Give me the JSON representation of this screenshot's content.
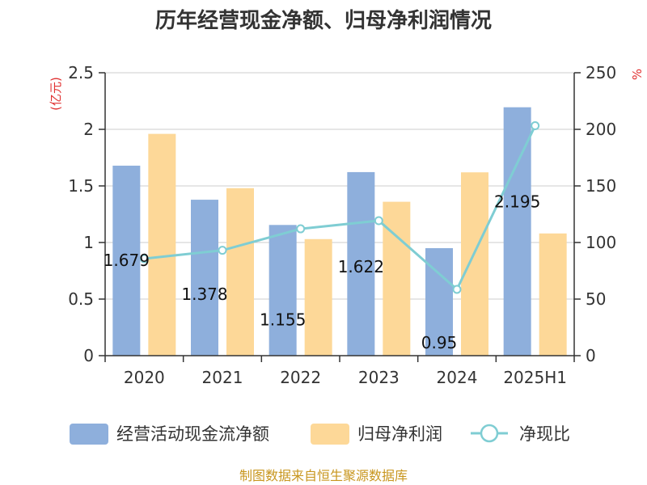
{
  "chart_data": {
    "type": "bar",
    "title": "历年经营现金净额、归母净利润情况",
    "categories": [
      "2020",
      "2021",
      "2022",
      "2023",
      "2024",
      "2025H1"
    ],
    "left_axis": {
      "unit": "(亿元)",
      "ylim": [
        0,
        2.5
      ],
      "ticks": [
        "0",
        "0.5",
        "1",
        "1.5",
        "2",
        "2.5"
      ],
      "tick_values": [
        0,
        0.5,
        1,
        1.5,
        2,
        2.5
      ]
    },
    "right_axis": {
      "unit": "%",
      "ylim": [
        0,
        250
      ],
      "ticks": [
        "0",
        "50",
        "100",
        "150",
        "200",
        "250"
      ],
      "tick_values": [
        0,
        50,
        100,
        150,
        200,
        250
      ]
    },
    "series": [
      {
        "name": "经营活动现金流净额",
        "type": "bar",
        "axis": "left",
        "color": "#8eafdc",
        "values": [
          1.679,
          1.378,
          1.155,
          1.622,
          0.95,
          2.195
        ],
        "labels": [
          "1.679",
          "1.378",
          "1.155",
          "1.622",
          "0.95",
          "2.195"
        ]
      },
      {
        "name": "归母净利润",
        "type": "bar",
        "axis": "left",
        "color": "#fdd898",
        "values": [
          1.96,
          1.48,
          1.03,
          1.36,
          1.62,
          1.08
        ]
      },
      {
        "name": "净现比",
        "type": "line",
        "axis": "right",
        "color": "#7fcdd3",
        "values": [
          85.7,
          93.1,
          112.1,
          119.3,
          58.6,
          203.2
        ]
      }
    ],
    "grid": true,
    "legend": "bottom"
  },
  "source": "制图数据来自恒生聚源数据库"
}
